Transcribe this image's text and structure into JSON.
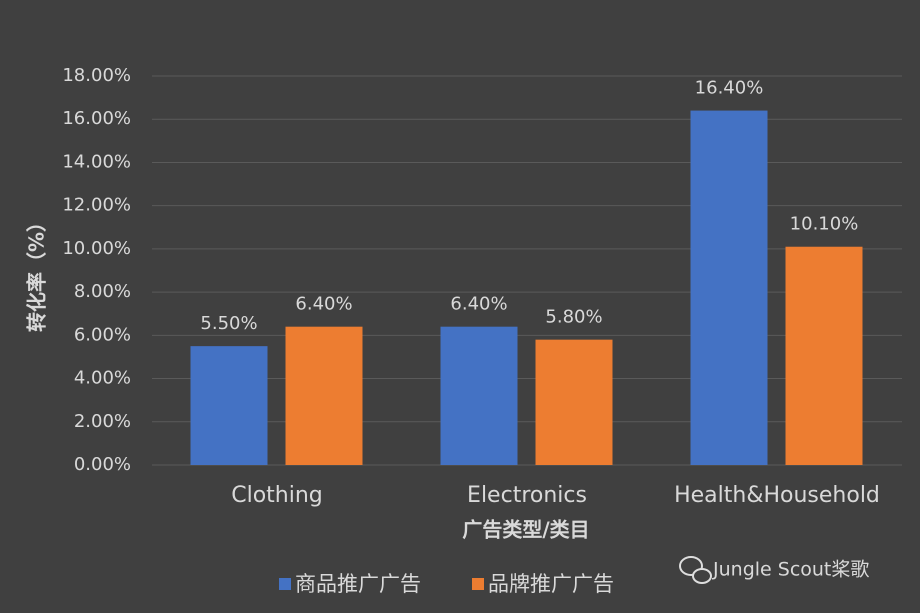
{
  "chart_data": {
    "type": "bar",
    "y_axis_label": "转化率（%）",
    "x_axis_label": "广告类型/类目",
    "categories": [
      "Clothing",
      "Electronics",
      "Health&Household"
    ],
    "series": [
      {
        "name": "商品推广广告",
        "color": "#4472c4",
        "values": [
          5.5,
          6.4,
          16.4
        ],
        "value_labels": [
          "5.50%",
          "6.40%",
          "16.40%"
        ]
      },
      {
        "name": "品牌推广广告",
        "color": "#ed7d31",
        "values": [
          6.4,
          5.8,
          10.1
        ],
        "value_labels": [
          "6.40%",
          "5.80%",
          "10.10%"
        ]
      }
    ],
    "ylim": [
      0,
      18
    ],
    "yticks": [
      {
        "value": 0,
        "label": "0.00%"
      },
      {
        "value": 2,
        "label": "2.00%"
      },
      {
        "value": 4,
        "label": "4.00%"
      },
      {
        "value": 6,
        "label": "6.00%"
      },
      {
        "value": 8,
        "label": "8.00%"
      },
      {
        "value": 10,
        "label": "10.00%"
      },
      {
        "value": 12,
        "label": "12.00%"
      },
      {
        "value": 14,
        "label": "14.00%"
      },
      {
        "value": 16,
        "label": "16.00%"
      },
      {
        "value": 18,
        "label": "18.00%"
      }
    ],
    "grid": true,
    "legend_position": "bottom",
    "watermark": "Jungle Scout桨歌"
  }
}
